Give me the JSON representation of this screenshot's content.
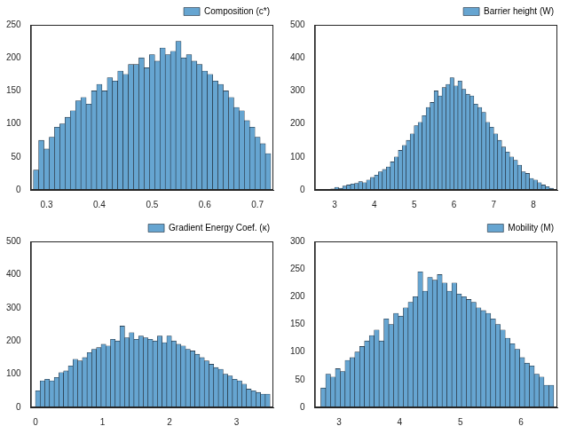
{
  "chart_data": [
    {
      "type": "histogram",
      "legend": "upper right",
      "grid": false,
      "bins": [
        0.275,
        0.285,
        0.295,
        0.305,
        0.315,
        0.325,
        0.335,
        0.345,
        0.355,
        0.365,
        0.375,
        0.385,
        0.395,
        0.405,
        0.415,
        0.425,
        0.435,
        0.445,
        0.455,
        0.465,
        0.475,
        0.485,
        0.495,
        0.505,
        0.515,
        0.525,
        0.535,
        0.545,
        0.555,
        0.565,
        0.575,
        0.585,
        0.595,
        0.605,
        0.615,
        0.625,
        0.635,
        0.645,
        0.655,
        0.665,
        0.675,
        0.685,
        0.695,
        0.705,
        0.715,
        0.725
      ],
      "series": [
        {
          "name": "Composition (c*)",
          "color": "#66a5d1",
          "values": [
            30,
            75,
            62,
            80,
            95,
            100,
            110,
            120,
            135,
            140,
            130,
            150,
            160,
            150,
            170,
            165,
            180,
            175,
            190,
            190,
            200,
            185,
            205,
            195,
            215,
            205,
            210,
            225,
            200,
            205,
            195,
            190,
            180,
            175,
            165,
            160,
            150,
            140,
            125,
            120,
            105,
            95,
            80,
            70,
            55
          ]
        }
      ],
      "xlim": [
        0.27,
        0.73
      ],
      "xticks": [
        0.3,
        0.4,
        0.5,
        0.6,
        0.7
      ],
      "ylim": [
        0,
        250
      ],
      "yticks": [
        0,
        50,
        100,
        150,
        200,
        250
      ]
    },
    {
      "type": "histogram",
      "legend": "upper right",
      "grid": false,
      "bins": [
        2.9,
        3.0,
        3.1,
        3.2,
        3.3,
        3.4,
        3.5,
        3.6,
        3.7,
        3.8,
        3.9,
        4.0,
        4.1,
        4.2,
        4.3,
        4.4,
        4.5,
        4.6,
        4.7,
        4.8,
        4.9,
        5.0,
        5.1,
        5.2,
        5.3,
        5.4,
        5.5,
        5.6,
        5.7,
        5.8,
        5.9,
        6.0,
        6.1,
        6.2,
        6.3,
        6.4,
        6.5,
        6.6,
        6.7,
        6.8,
        6.9,
        7.0,
        7.1,
        7.2,
        7.3,
        7.4,
        7.5,
        7.6,
        7.7,
        7.8,
        7.9,
        8.0,
        8.1,
        8.2,
        8.3,
        8.4,
        8.5
      ],
      "series": [
        {
          "name": "Barrier height (W)",
          "color": "#66a5d1",
          "values": [
            3,
            8,
            5,
            12,
            15,
            18,
            20,
            25,
            22,
            30,
            38,
            45,
            55,
            62,
            70,
            85,
            100,
            120,
            135,
            150,
            170,
            195,
            205,
            225,
            250,
            265,
            300,
            285,
            310,
            320,
            340,
            315,
            330,
            305,
            290,
            285,
            260,
            250,
            235,
            205,
            190,
            170,
            150,
            130,
            115,
            100,
            90,
            75,
            55,
            50,
            35,
            30,
            22,
            15,
            10,
            5
          ]
        }
      ],
      "xlim": [
        2.5,
        8.6
      ],
      "xticks": [
        3,
        4,
        5,
        6,
        7,
        8
      ],
      "ylim": [
        0,
        500
      ],
      "yticks": [
        0,
        100,
        200,
        300,
        400,
        500
      ]
    },
    {
      "type": "histogram",
      "legend": "upper right",
      "grid": false,
      "bins": [
        0,
        0.07,
        0.14,
        0.21,
        0.28,
        0.35,
        0.42,
        0.49,
        0.56,
        0.63,
        0.7,
        0.77,
        0.84,
        0.91,
        0.98,
        1.05,
        1.12,
        1.19,
        1.26,
        1.33,
        1.4,
        1.47,
        1.54,
        1.61,
        1.68,
        1.75,
        1.82,
        1.89,
        1.96,
        2.03,
        2.1,
        2.17,
        2.24,
        2.31,
        2.38,
        2.45,
        2.52,
        2.59,
        2.66,
        2.73,
        2.8,
        2.87,
        2.94,
        3.01,
        3.08,
        3.15,
        3.22,
        3.29,
        3.36,
        3.43,
        3.5
      ],
      "series": [
        {
          "name": "Gradient Energy Coef. (κ)",
          "color": "#66a5d1",
          "values": [
            50,
            80,
            85,
            80,
            90,
            105,
            110,
            125,
            145,
            140,
            150,
            165,
            175,
            180,
            190,
            185,
            205,
            200,
            245,
            210,
            225,
            205,
            215,
            210,
            205,
            200,
            215,
            195,
            215,
            200,
            190,
            185,
            175,
            170,
            160,
            150,
            140,
            130,
            120,
            115,
            100,
            95,
            85,
            80,
            70,
            55,
            50,
            45,
            40,
            40
          ]
        }
      ],
      "xlim": [
        -0.07,
        3.55
      ],
      "xticks": [
        0,
        1,
        2,
        3
      ],
      "ylim": [
        0,
        500
      ],
      "yticks": [
        0,
        100,
        200,
        300,
        400,
        500
      ]
    },
    {
      "type": "histogram",
      "legend": "upper right",
      "grid": false,
      "bins": [
        2.7,
        2.78,
        2.86,
        2.94,
        3.02,
        3.1,
        3.18,
        3.26,
        3.34,
        3.42,
        3.5,
        3.58,
        3.66,
        3.74,
        3.82,
        3.9,
        3.98,
        4.06,
        4.14,
        4.22,
        4.3,
        4.38,
        4.46,
        4.54,
        4.62,
        4.7,
        4.78,
        4.86,
        4.94,
        5.02,
        5.1,
        5.18,
        5.26,
        5.34,
        5.42,
        5.5,
        5.58,
        5.66,
        5.74,
        5.82,
        5.9,
        5.98,
        6.06,
        6.14,
        6.22,
        6.3,
        6.38,
        6.46,
        6.54
      ],
      "series": [
        {
          "name": "Mobility (M)",
          "color": "#66a5d1",
          "values": [
            35,
            60,
            55,
            70,
            65,
            85,
            90,
            100,
            110,
            120,
            130,
            140,
            120,
            160,
            150,
            170,
            165,
            180,
            190,
            200,
            245,
            210,
            235,
            230,
            240,
            225,
            210,
            225,
            205,
            200,
            195,
            190,
            180,
            175,
            170,
            160,
            150,
            140,
            125,
            115,
            105,
            90,
            80,
            75,
            60,
            55,
            40,
            40
          ]
        }
      ],
      "xlim": [
        2.6,
        6.6
      ],
      "xticks": [
        3,
        4,
        5,
        6
      ],
      "ylim": [
        0,
        300
      ],
      "yticks": [
        0,
        50,
        100,
        150,
        200,
        250,
        300
      ]
    }
  ]
}
